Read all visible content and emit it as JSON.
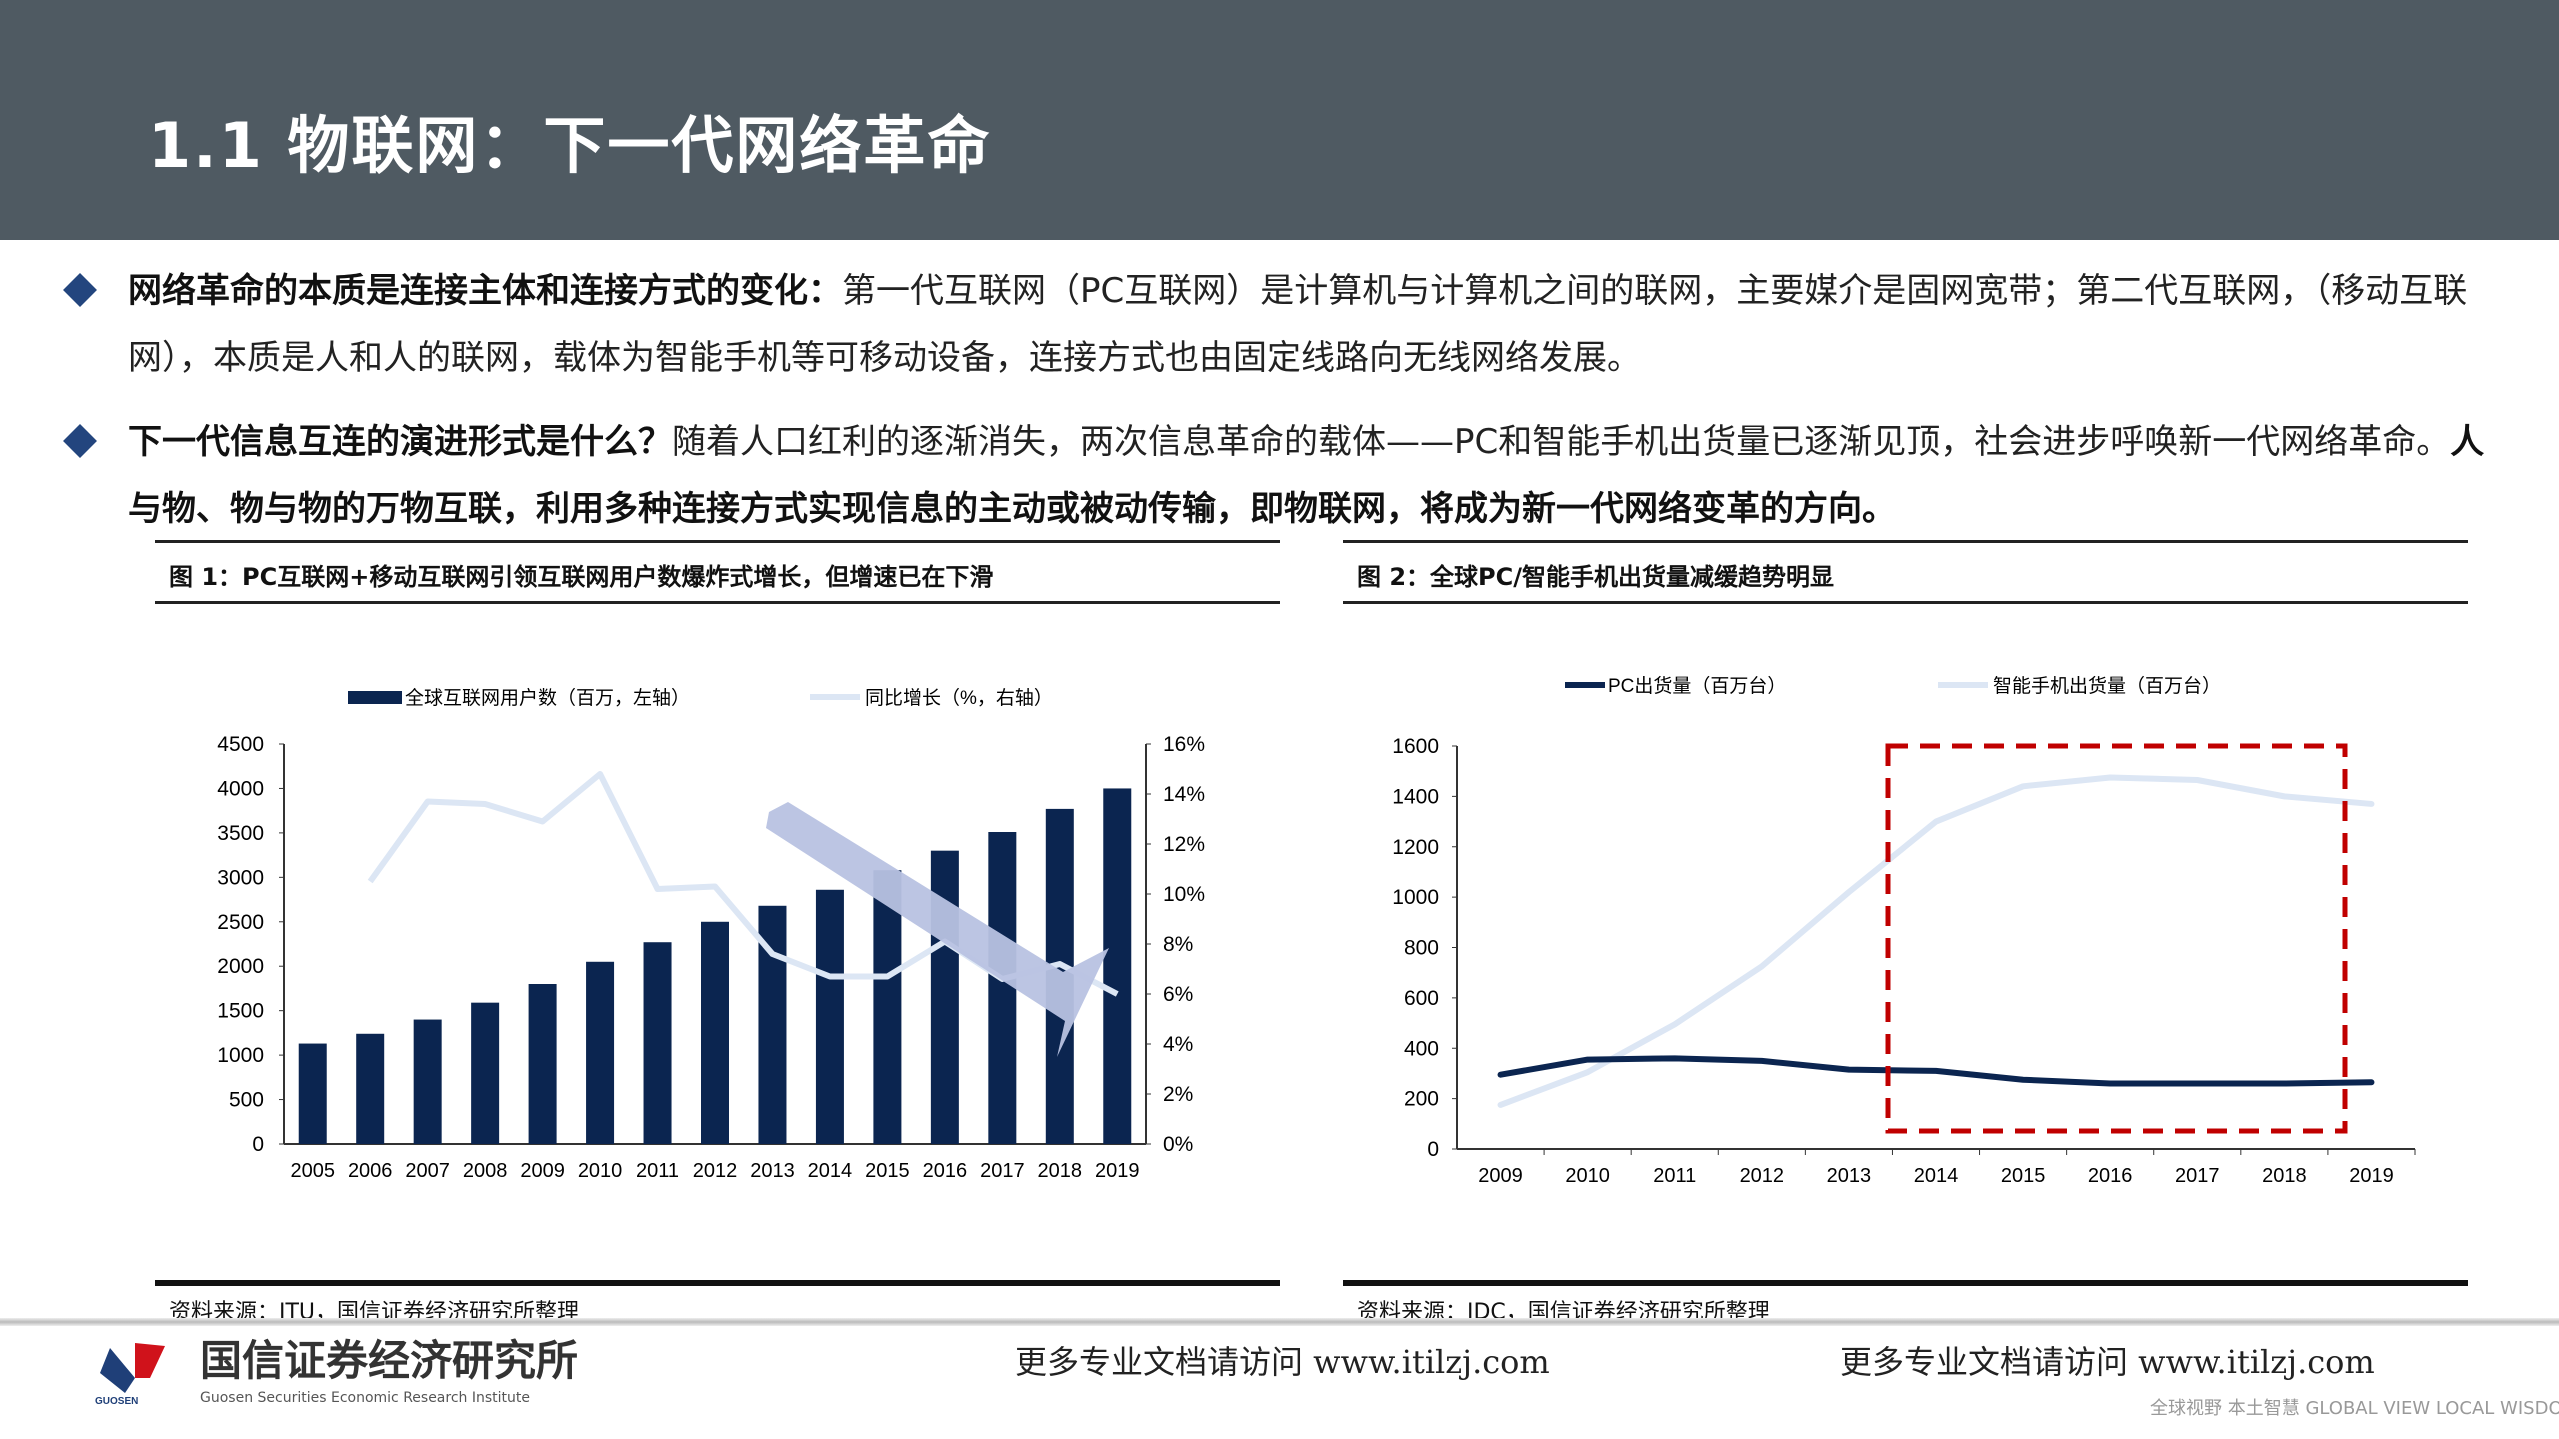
{
  "header": {
    "title": "1.1 物联网：下一代网络革命"
  },
  "bullets": [
    {
      "bold": "网络革命的本质是连接主体和连接方式的变化：",
      "text": "第一代互联网（PC互联网）是计算机与计算机之间的联网，主要媒介是固网宽带；第二代互联网，（移动互联网），本质是人和人的联网，载体为智能手机等可移动设备，连接方式也由固定线路向无线网络发展。"
    },
    {
      "bold": "下一代信息互连的演进形式是什么？",
      "text": "随着人口红利的逐渐消失，两次信息革命的载体——PC和智能手机出货量已逐渐见顶，社会进步呼唤新一代网络革命。",
      "bold2": "人与物、物与物的万物互联，利用多种连接方式实现信息的主动或被动传输，即物联网，将成为新一代网络变革的方向。"
    }
  ],
  "figures": [
    {
      "title": "图 1：PC互联网+移动互联网引领互联网用户数爆炸式增长，但增速已在下滑",
      "source": "资料来源：ITU，国信证券经济研究所整理"
    },
    {
      "title": "图 2：全球PC/智能手机出货量减缓趋势明显",
      "source": "资料来源：IDC，国信证券经济研究所整理"
    }
  ],
  "chart_data": [
    {
      "type": "bar+line",
      "categories": [
        "2005",
        "2006",
        "2007",
        "2008",
        "2009",
        "2010",
        "2011",
        "2012",
        "2013",
        "2014",
        "2015",
        "2016",
        "2017",
        "2018",
        "2019"
      ],
      "series": [
        {
          "name": "全球互联网用户数（百万，左轴）",
          "type": "bar",
          "axis": "left",
          "color": "#0b2550",
          "values": [
            1130,
            1240,
            1400,
            1590,
            1800,
            2050,
            2270,
            2500,
            2680,
            2860,
            3080,
            3300,
            3510,
            3770,
            4000
          ]
        },
        {
          "name": "同比增长（%，右轴）",
          "type": "line",
          "axis": "right",
          "color": "#dce6f4",
          "values": [
            null,
            10.5,
            13.7,
            13.6,
            12.9,
            14.8,
            10.2,
            10.3,
            7.6,
            6.7,
            6.7,
            8.1,
            6.6,
            7.2,
            6.0
          ]
        }
      ],
      "ylim_left": [
        0,
        4500
      ],
      "yticks_left": [
        "0",
        "500",
        "1000",
        "1500",
        "2000",
        "2500",
        "3000",
        "3500",
        "4000",
        "4500"
      ],
      "ylim_right": [
        0,
        16
      ],
      "yticks_right": [
        "0%",
        "2%",
        "4%",
        "6%",
        "8%",
        "10%",
        "12%",
        "14%",
        "16%"
      ],
      "annotation": "downward-arrow",
      "arrow_color": "#b8c2e2",
      "legend": "top",
      "grid": false
    },
    {
      "type": "line",
      "categories": [
        "2009",
        "2010",
        "2011",
        "2012",
        "2013",
        "2014",
        "2015",
        "2016",
        "2017",
        "2018",
        "2019"
      ],
      "series": [
        {
          "name": "PC出货量（百万台）",
          "color": "#0b2550",
          "values": [
            295,
            355,
            360,
            350,
            315,
            310,
            275,
            260,
            260,
            260,
            265
          ]
        },
        {
          "name": "智能手机出货量（百万台）",
          "color": "#dce6f4",
          "values": [
            175,
            305,
            495,
            725,
            1020,
            1300,
            1440,
            1475,
            1465,
            1400,
            1370
          ]
        }
      ],
      "ylim": [
        0,
        1600
      ],
      "yticks": [
        "0",
        "200",
        "400",
        "600",
        "800",
        "1000",
        "1200",
        "1400",
        "1600"
      ],
      "annotation": "red-dashed-box-2014-2019",
      "annotation_color": "#c00000",
      "legend": "top",
      "grid": false
    }
  ],
  "footer": {
    "logo_cn": "国信证券经济研究所",
    "logo_en": "Guosen Securities Economic Research Institute",
    "logo_mark": "GUOSEN",
    "promo1": "更多专业文档请访问 www.itilzj.com",
    "promo2": "更多专业文档请访问 www.itilzj.com",
    "watermark": "全球视野 本土智慧 GLOBAL VIEW LOCAL WISDOM"
  }
}
